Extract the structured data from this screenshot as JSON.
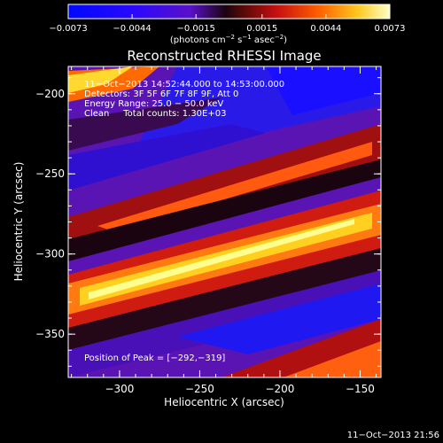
{
  "chart_data": {
    "type": "heatmap",
    "title": "Reconstructed RHESSI Image",
    "xlabel": "Heliocentric X (arcsec)",
    "ylabel": "Heliocentric Y (arcsec)",
    "xlim": [
      -332,
      -137
    ],
    "ylim": [
      -377,
      -183
    ],
    "xticks": [
      -300,
      -250,
      -200,
      -150
    ],
    "yticks": [
      -200,
      -250,
      -300,
      -350
    ],
    "xtick_labels": [
      "−300",
      "−250",
      "−200",
      "−150"
    ],
    "ytick_labels": [
      "−200",
      "−250",
      "−300",
      "−350"
    ],
    "colorbar": {
      "range": [
        -0.0073,
        0.0073
      ],
      "ticks": [
        -0.0073,
        -0.0044,
        -0.0015,
        0.0015,
        0.0044,
        0.0073
      ],
      "tick_labels": [
        "−0.0073",
        "−0.0044",
        "−0.0015",
        "0.0015",
        "0.0044",
        "0.0073"
      ],
      "unit_prefix": "(photons cm",
      "unit_exp1": "−2",
      "unit_mid": " s",
      "unit_exp2": "−1",
      "unit_mid2": " asec",
      "unit_exp3": "−2",
      "unit_suffix": ")"
    },
    "annotations": [
      "11−Oct−2013 14:52:44.000 to 14:53:00.000",
      "Detectors: 3F 5F 6F 7F 8F 9F, Att 0",
      "Energy Range: 25.0 − 50.0 keV",
      "Clean     Total counts: 1.30E+03"
    ],
    "peak_label": "Position of Peak = [−292,−319]",
    "peak_position": [
      -292,
      -319
    ],
    "timestamp": "11−Oct−2013 21:56"
  }
}
